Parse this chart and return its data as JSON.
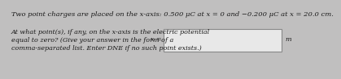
{
  "line1": "Two point charges are placed on the x-axis: 0.500 μC at x = 0 and −0.200 μC at x = 20.0 cm.",
  "line2": "At what point(s), if any, on the x-axis is the electric potential",
  "line3": "equal to zero? (Give your answer in the form of a",
  "line4": "comma-separated list. Enter DNE if no such point exists.)",
  "label_x": "x =",
  "label_m": "m",
  "bg_color": "#c0bfbf",
  "box_fill": "#e8e8e8",
  "box_edge": "#888888",
  "text_color": "#1a1a1a",
  "font_size_line1": 6.0,
  "font_size_body": 5.8
}
